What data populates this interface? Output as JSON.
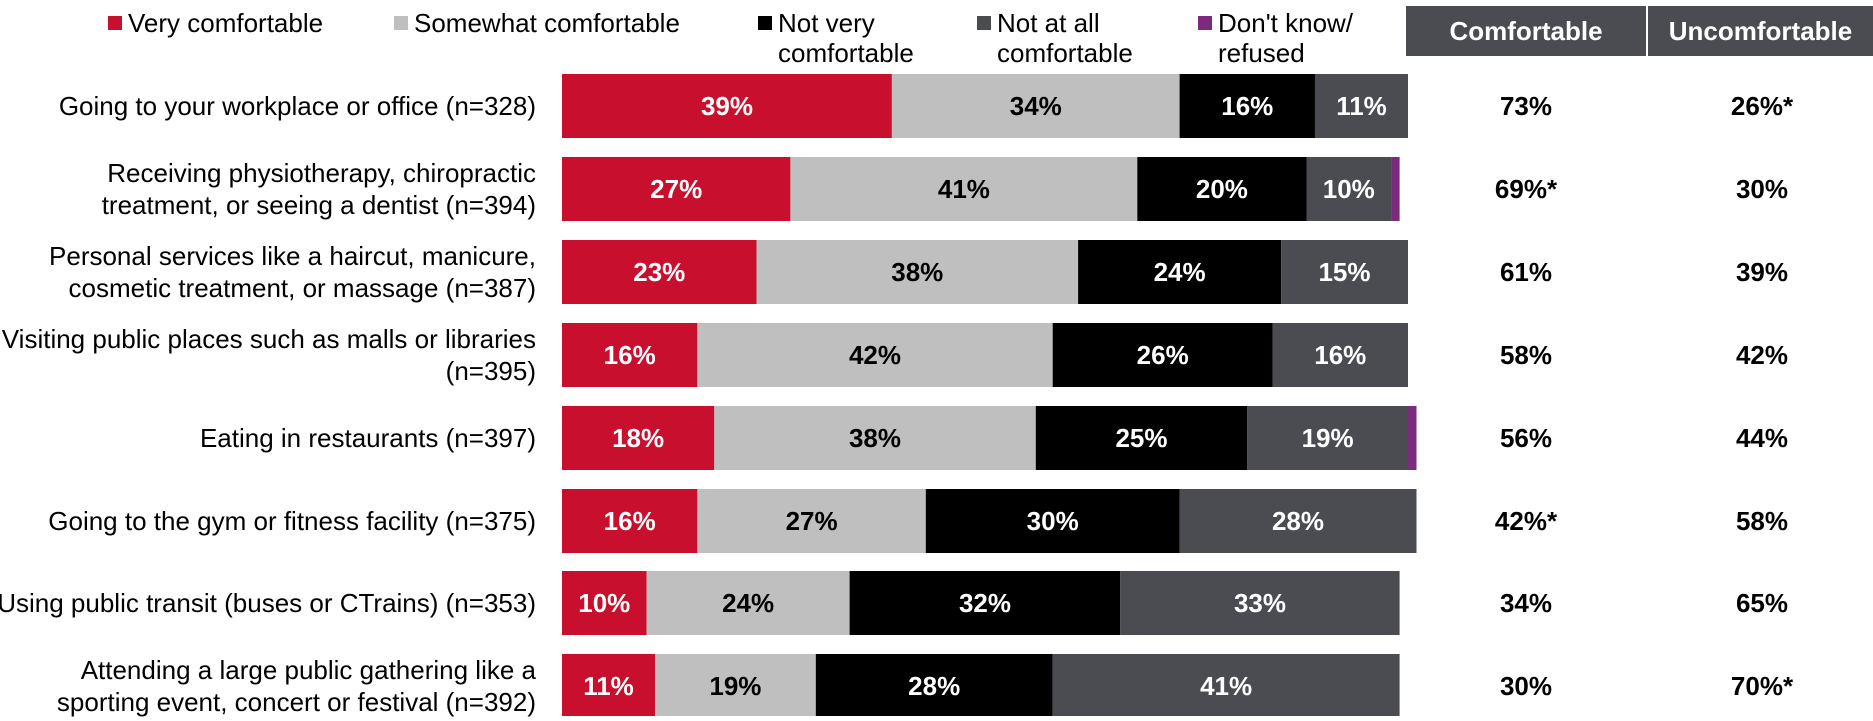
{
  "chart_data": {
    "type": "bar",
    "orientation": "horizontal",
    "stacked": true,
    "legend": [
      {
        "name": "Very comfortable",
        "color": "#c8102e"
      },
      {
        "name": "Somewhat comfortable",
        "color": "#bfbfbf"
      },
      {
        "name": "Not very comfortable",
        "color": "#000000"
      },
      {
        "name": "Not at all comfortable",
        "color": "#4b4c52"
      },
      {
        "name": "Don't know/ refused",
        "color": "#7b2a7d"
      }
    ],
    "summary_headers": [
      "Comfortable",
      "Uncomfortable"
    ],
    "categories": [
      "Going to your workplace or office (n=328)",
      "Receiving physiotherapy, chiropractic treatment, or seeing a dentist (n=394)",
      "Personal services like a haircut, manicure, cosmetic treatment, or massage (n=387)",
      "Visiting public places such as malls or libraries (n=395)",
      "Eating in restaurants (n=397)",
      "Going to the gym or fitness facility (n=375)",
      "Using public transit (buses or CTrains) (n=353)",
      "Attending a large public gathering like a sporting event, concert or festival (n=392)"
    ],
    "series": [
      {
        "name": "Very comfortable",
        "values": [
          39,
          27,
          23,
          16,
          18,
          16,
          10,
          11
        ]
      },
      {
        "name": "Somewhat comfortable",
        "values": [
          34,
          41,
          38,
          42,
          38,
          27,
          24,
          19
        ]
      },
      {
        "name": "Not very comfortable",
        "values": [
          16,
          20,
          24,
          26,
          25,
          30,
          32,
          28
        ]
      },
      {
        "name": "Not at all comfortable",
        "values": [
          11,
          10,
          15,
          16,
          19,
          28,
          33,
          41
        ]
      },
      {
        "name": "Don't know/ refused",
        "values": [
          0,
          1,
          0,
          0,
          1,
          0,
          0,
          0
        ]
      }
    ],
    "comfortable": [
      "73%",
      "69%*",
      "61%",
      "58%",
      "56%",
      "42%*",
      "34%",
      "30%"
    ],
    "uncomfortable": [
      "26%*",
      "30%",
      "39%",
      "42%",
      "44%",
      "58%",
      "65%",
      "70%*"
    ]
  }
}
